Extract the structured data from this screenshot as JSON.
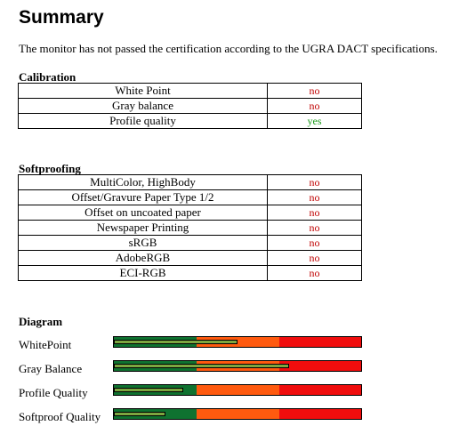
{
  "title": "Summary",
  "intro": "The monitor has not passed the certification according to the UGRA DACT specifications.",
  "colors": {
    "fail": "#c00000",
    "pass": "#1a9a1a",
    "zone_good": "#0f7230",
    "zone_mid": "#ff5a0f",
    "zone_bad": "#f00d0d",
    "indicator": "#7da640"
  },
  "calibration": {
    "heading": "Calibration",
    "rows": [
      {
        "name": "White Point",
        "result": "no"
      },
      {
        "name": "Gray balance",
        "result": "no"
      },
      {
        "name": "Profile quality",
        "result": "yes"
      }
    ]
  },
  "softproofing": {
    "heading": "Softproofing",
    "rows": [
      {
        "name": "MultiColor, HighBody",
        "result": "no"
      },
      {
        "name": "Offset/Gravure Paper Type 1/2",
        "result": "no"
      },
      {
        "name": "Offset on uncoated paper",
        "result": "no"
      },
      {
        "name": "Newspaper Printing",
        "result": "no"
      },
      {
        "name": "sRGB",
        "result": "no"
      },
      {
        "name": "AdobeRGB",
        "result": "no"
      },
      {
        "name": "ECI-RGB",
        "result": "no"
      }
    ]
  },
  "diagram": {
    "heading": "Diagram",
    "bars": [
      {
        "label": "WhitePoint",
        "level": 0.5
      },
      {
        "label": "Gray Balance",
        "level": 0.71
      },
      {
        "label": "Profile Quality",
        "level": 0.28
      },
      {
        "label": "Softproof Quality",
        "level": 0.21
      }
    ]
  }
}
